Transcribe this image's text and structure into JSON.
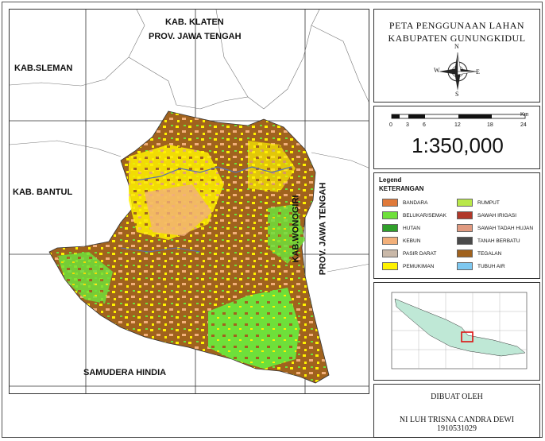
{
  "map_title": {
    "line1": "PETA PENGGUNAAN LAHAN",
    "line2": "KABUPATEN GUNUNGKIDUL"
  },
  "compass": {
    "n": "N",
    "s": "S",
    "e": "E",
    "w": "W"
  },
  "scale_bar": {
    "unit": "Km",
    "ticks": [
      "0",
      "3",
      "6",
      "12",
      "18",
      "24"
    ],
    "ratio": "1:350,000"
  },
  "region_labels": {
    "klaten": "KAB. KLATEN",
    "jateng_north": "PROV. JAWA TENGAH",
    "sleman": "KAB.SLEMAN",
    "bantul": "KAB. BANTUL",
    "wonogiri": "KAB.WONOGIRI",
    "jateng_east": "PROV. JAWA TENGAH",
    "samudera": "SAMUDERA HINDIA"
  },
  "legend": {
    "title": "Legend",
    "subtitle": "KETERANGAN",
    "items": [
      {
        "label": "BANDARA",
        "color": "#e07a3a"
      },
      {
        "label": "RUMPUT",
        "color": "#b9e84a"
      },
      {
        "label": "BELUKAR/SEMAK",
        "color": "#6ee03a"
      },
      {
        "label": "SAWAH IRIGASI",
        "color": "#b0382a"
      },
      {
        "label": "HUTAN",
        "color": "#2fa02a"
      },
      {
        "label": "SAWAH TADAH HUJAN",
        "color": "#e09a80"
      },
      {
        "label": "KEBUN",
        "color": "#f2b07a"
      },
      {
        "label": "TANAH BERBATU",
        "color": "#4a4a4a"
      },
      {
        "label": "PASIR DARAT",
        "color": "#c9b8a8"
      },
      {
        "label": "TEGALAN",
        "color": "#a0621e"
      },
      {
        "label": "PEMUKIMAN",
        "color": "#fff200"
      },
      {
        "label": "TUBUH AIR",
        "color": "#7ec8f0"
      }
    ]
  },
  "credit": {
    "line1": "DIBUAT OLEH",
    "line2": "NI LUH TRISNA CANDRA DEWI",
    "line3": "1910531029"
  }
}
